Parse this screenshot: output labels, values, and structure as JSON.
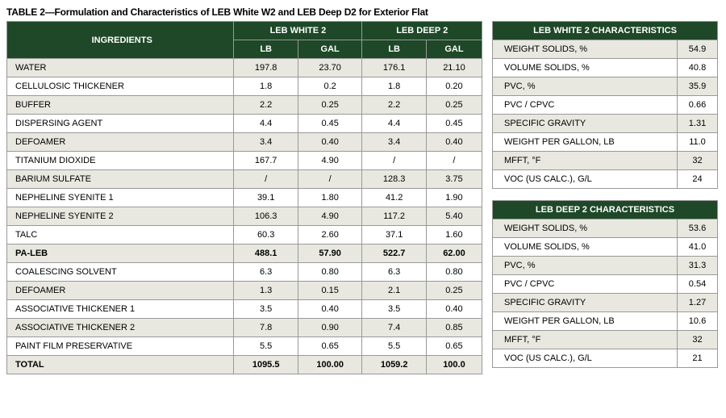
{
  "title": "TABLE 2—Formulation and Characteristics of LEB White W2 and LEB Deep D2 for Exterior Flat",
  "formulation": {
    "headers": {
      "ingredients": "INGREDIENTS",
      "white": "LEB WHITE 2",
      "deep": "LEB DEEP 2",
      "lb": "LB",
      "gal": "GAL"
    },
    "rows": [
      {
        "name": "WATER",
        "wlb": "197.8",
        "wgal": "23.70",
        "dlb": "176.1",
        "dgal": "21.10",
        "alt": true
      },
      {
        "name": "CELLULOSIC THICKENER",
        "wlb": "1.8",
        "wgal": "0.2",
        "dlb": "1.8",
        "dgal": "0.20"
      },
      {
        "name": "BUFFER",
        "wlb": "2.2",
        "wgal": "0.25",
        "dlb": "2.2",
        "dgal": "0.25",
        "alt": true
      },
      {
        "name": "DISPERSING AGENT",
        "wlb": "4.4",
        "wgal": "0.45",
        "dlb": "4.4",
        "dgal": "0.45"
      },
      {
        "name": "DEFOAMER",
        "wlb": "3.4",
        "wgal": "0.40",
        "dlb": "3.4",
        "dgal": "0.40",
        "alt": true
      },
      {
        "name": "TITANIUM DIOXIDE",
        "wlb": "167.7",
        "wgal": "4.90",
        "dlb": "/",
        "dgal": "/"
      },
      {
        "name": "BARIUM SULFATE",
        "wlb": "/",
        "wgal": "/",
        "dlb": "128.3",
        "dgal": "3.75",
        "alt": true
      },
      {
        "name": "NEPHELINE SYENITE 1",
        "wlb": "39.1",
        "wgal": "1.80",
        "dlb": "41.2",
        "dgal": "1.90"
      },
      {
        "name": "NEPHELINE SYENITE 2",
        "wlb": "106.3",
        "wgal": "4.90",
        "dlb": "117.2",
        "dgal": "5.40",
        "alt": true
      },
      {
        "name": "TALC",
        "wlb": "60.3",
        "wgal": "2.60",
        "dlb": "37.1",
        "dgal": "1.60"
      },
      {
        "name": "PA-LEB",
        "wlb": "488.1",
        "wgal": "57.90",
        "dlb": "522.7",
        "dgal": "62.00",
        "alt": true,
        "bold": true
      },
      {
        "name": "COALESCING SOLVENT",
        "wlb": "6.3",
        "wgal": "0.80",
        "dlb": "6.3",
        "dgal": "0.80"
      },
      {
        "name": "DEFOAMER",
        "wlb": "1.3",
        "wgal": "0.15",
        "dlb": "2.1",
        "dgal": "0.25",
        "alt": true
      },
      {
        "name": "ASSOCIATIVE THICKENER 1",
        "wlb": "3.5",
        "wgal": "0.40",
        "dlb": "3.5",
        "dgal": "0.40"
      },
      {
        "name": "ASSOCIATIVE THICKENER 2",
        "wlb": "7.8",
        "wgal": "0.90",
        "dlb": "7.4",
        "dgal": "0.85",
        "alt": true
      },
      {
        "name": "PAINT FILM PRESERVATIVE",
        "wlb": "5.5",
        "wgal": "0.65",
        "dlb": "5.5",
        "dgal": "0.65"
      },
      {
        "name": "TOTAL",
        "wlb": "1095.5",
        "wgal": "100.00",
        "dlb": "1059.2",
        "dgal": "100.0",
        "alt": true,
        "bold": true
      }
    ]
  },
  "whiteChar": {
    "title": "LEB WHITE 2 CHARACTERISTICS",
    "rows": [
      {
        "k": "WEIGHT SOLIDS, %",
        "v": "54.9",
        "alt": true
      },
      {
        "k": "VOLUME SOLIDS, %",
        "v": "40.8"
      },
      {
        "k": "PVC, %",
        "v": "35.9",
        "alt": true
      },
      {
        "k": "PVC / CPVC",
        "v": "0.66"
      },
      {
        "k": "SPECIFIC GRAVITY",
        "v": "1.31",
        "alt": true
      },
      {
        "k": "WEIGHT PER GALLON, LB",
        "v": "11.0"
      },
      {
        "k": "MFFT, °F",
        "v": "32",
        "alt": true
      },
      {
        "k": "VOC (US CALC.), G/L",
        "v": "24"
      }
    ]
  },
  "deepChar": {
    "title": "LEB DEEP 2 CHARACTERISTICS",
    "rows": [
      {
        "k": "WEIGHT SOLIDS, %",
        "v": "53.6",
        "alt": true
      },
      {
        "k": "VOLUME SOLIDS, %",
        "v": "41.0"
      },
      {
        "k": "PVC, %",
        "v": "31.3",
        "alt": true
      },
      {
        "k": "PVC / CPVC",
        "v": "0.54"
      },
      {
        "k": "SPECIFIC GRAVITY",
        "v": "1.27",
        "alt": true
      },
      {
        "k": "WEIGHT PER GALLON, LB",
        "v": "10.6"
      },
      {
        "k": "MFFT, °F",
        "v": "32",
        "alt": true
      },
      {
        "k": "VOC (US CALC.), G/L",
        "v": "21"
      }
    ]
  }
}
